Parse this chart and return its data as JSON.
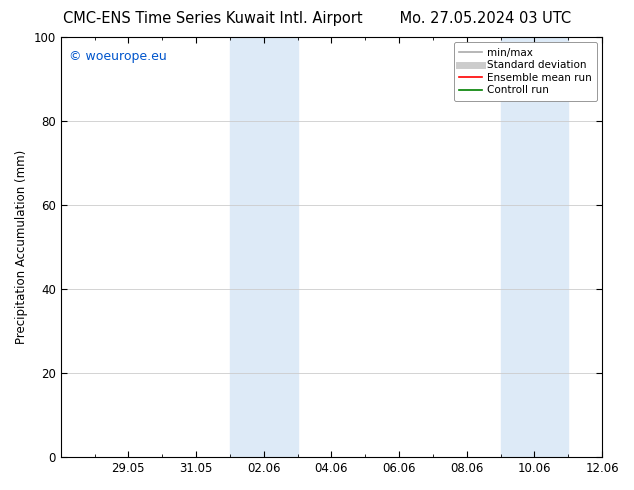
{
  "title_left": "CMC-ENS Time Series Kuwait Intl. Airport",
  "title_right": "Mo. 27.05.2024 03 UTC",
  "ylabel": "Precipitation Accumulation (mm)",
  "watermark": "© woeurope.eu",
  "watermark_color": "#0055cc",
  "ylim": [
    0,
    100
  ],
  "x_num_days": 16,
  "x_ticks_labels": [
    "29.05",
    "31.05",
    "02.06",
    "04.06",
    "06.06",
    "08.06",
    "10.06",
    "12.06"
  ],
  "x_ticks_values": [
    2,
    4,
    6,
    8,
    10,
    12,
    14,
    16
  ],
  "yticks": [
    0,
    20,
    40,
    60,
    80,
    100
  ],
  "shaded_regions": [
    {
      "x_start": 5.0,
      "x_end": 7.0,
      "color": "#ddeaf7"
    },
    {
      "x_start": 13.0,
      "x_end": 15.0,
      "color": "#ddeaf7"
    }
  ],
  "background_color": "#ffffff",
  "grid_color": "#cccccc",
  "legend_items": [
    {
      "label": "min/max",
      "color": "#aaaaaa",
      "lw": 1.2,
      "style": "solid"
    },
    {
      "label": "Standard deviation",
      "color": "#cccccc",
      "lw": 5,
      "style": "solid"
    },
    {
      "label": "Ensemble mean run",
      "color": "#ff0000",
      "lw": 1.2,
      "style": "solid"
    },
    {
      "label": "Controll run",
      "color": "#008000",
      "lw": 1.2,
      "style": "solid"
    }
  ],
  "title_fontsize": 10.5,
  "tick_fontsize": 8.5,
  "ylabel_fontsize": 8.5,
  "watermark_fontsize": 9,
  "border_color": "#000000"
}
